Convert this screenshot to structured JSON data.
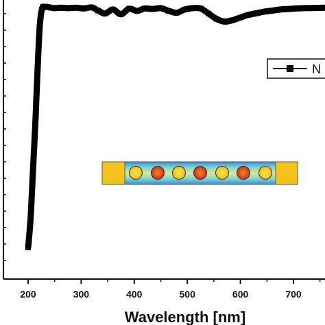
{
  "chart_data": {
    "type": "line",
    "xlabel": "Wavelength [nm]",
    "ylabel": "",
    "xlim": [
      154,
      782
    ],
    "ylim": [
      0,
      1
    ],
    "x_ticks": [
      200,
      300,
      400,
      500,
      600,
      700
    ],
    "grid": false,
    "legend_position": "right",
    "series": [
      {
        "name": "N",
        "color": "#000000",
        "marker": "square",
        "x": [
          200,
          202,
          205,
          208,
          211,
          214,
          216,
          218,
          220,
          222,
          224,
          226,
          228,
          230,
          235,
          240,
          250,
          262,
          275,
          290,
          305,
          320,
          332,
          345,
          360,
          375,
          390,
          405,
          420,
          435,
          450,
          465,
          480,
          495,
          510,
          525,
          540,
          555,
          570,
          585,
          600,
          615,
          630,
          645,
          660,
          675,
          690,
          705,
          720,
          740,
          760,
          782
        ],
        "y": [
          0.1,
          0.14,
          0.22,
          0.34,
          0.46,
          0.58,
          0.68,
          0.77,
          0.86,
          0.93,
          0.97,
          0.99,
          1.0,
          1.0,
          1.0,
          0.998,
          0.995,
          0.997,
          0.995,
          0.997,
          0.994,
          0.998,
          0.986,
          0.975,
          0.99,
          0.972,
          0.993,
          0.985,
          0.994,
          0.992,
          0.995,
          0.985,
          0.978,
          0.99,
          0.995,
          0.994,
          0.975,
          0.955,
          0.945,
          0.95,
          0.96,
          0.97,
          0.976,
          0.982,
          0.986,
          0.99,
          0.992,
          0.994,
          0.995,
          0.996,
          0.997,
          0.998
        ]
      }
    ]
  },
  "inset": {
    "description_hidden": true,
    "left_block_color": "#f4c21c",
    "field_color_low": "#2a7fe0",
    "field_color_mid": "#7fd6c8",
    "field_color_high": "#e0442a"
  }
}
